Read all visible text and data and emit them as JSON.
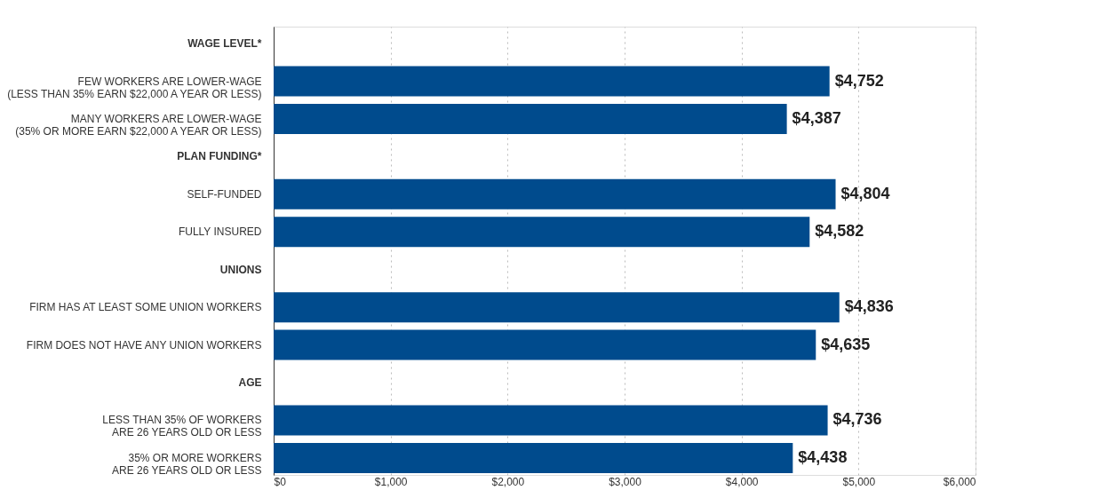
{
  "chart_data": {
    "type": "bar",
    "orientation": "horizontal",
    "categories": [
      "WAGE LEVEL*",
      "FEW WORKERS ARE LOWER-WAGE\n(LESS THAN 35% EARN $22,000 A YEAR OR LESS)",
      "MANY WORKERS ARE LOWER-WAGE\n(35% OR MORE EARN $22,000 A YEAR OR LESS)",
      "PLAN FUNDING*",
      "SELF-FUNDED",
      "FULLY INSURED",
      "UNIONS",
      "FIRM HAS AT LEAST SOME UNION WORKERS",
      "FIRM DOES NOT HAVE ANY UNION WORKERS",
      "AGE",
      "LESS THAN 35% OF WORKERS\nARE 26 YEARS OLD OR LESS",
      "35% OR MORE WORKERS\nARE 26 YEARS OLD OR LESS"
    ],
    "values": [
      null,
      4752,
      4387,
      null,
      4804,
      4582,
      null,
      4836,
      4635,
      null,
      4736,
      4438
    ],
    "value_labels": [
      null,
      "$4,752",
      "$4,387",
      null,
      "$4,804",
      "$4,582",
      null,
      "$4,836",
      "$4,635",
      null,
      "$4,736",
      "$4,438"
    ],
    "color": "#004b8d",
    "xlim": [
      0,
      6000
    ],
    "xticks": [
      {
        "value": 0,
        "label": "$0"
      },
      {
        "value": 1000,
        "label": "$1,000"
      },
      {
        "value": 2000,
        "label": "$2,000"
      },
      {
        "value": 3000,
        "label": "$3,000"
      },
      {
        "value": 4000,
        "label": "$4,000"
      },
      {
        "value": 5000,
        "label": "$5,000"
      },
      {
        "value": 6000,
        "label": "$6,000"
      }
    ],
    "grid": "x"
  }
}
